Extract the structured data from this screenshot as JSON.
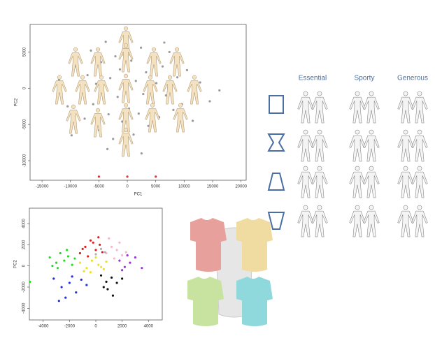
{
  "chart_data": [
    {
      "type": "scatter",
      "xlabel": "PC1",
      "ylabel": "PC2",
      "xlim": [
        -17100,
        20900
      ],
      "ylim": [
        -12700,
        8800
      ],
      "xticks": [
        -15000,
        -10000,
        -5000,
        0,
        5000,
        10000,
        15000,
        20000
      ],
      "yticks": [
        -10000,
        -5000,
        0,
        5000
      ],
      "series": [
        {
          "color": "#9a9a9a",
          "x": [
            -12000,
            -10500,
            -9000,
            -8200,
            -7500,
            -7000,
            -6400,
            -6000,
            -5500,
            -5000,
            -4600,
            -4200,
            -3800,
            -3300,
            -3000,
            -2500,
            -2100,
            -1700,
            -1300,
            -900,
            -500,
            -100,
            300,
            700,
            1100,
            1500,
            2000,
            2400,
            2800,
            3300,
            3700,
            4200,
            4600,
            5100,
            5600,
            6200,
            6800,
            7400,
            8100,
            8800,
            9600,
            10500,
            11500,
            12800,
            14500,
            16200,
            -9800,
            -3500,
            2500,
            6500
          ],
          "y": [
            1200,
            -2500,
            3000,
            -600,
            -4200,
            1800,
            5200,
            -2200,
            600,
            -5800,
            3600,
            -1500,
            6400,
            -3600,
            1400,
            -7000,
            4400,
            -1200,
            2600,
            -4600,
            200,
            7000,
            -2800,
            3800,
            -6400,
            1000,
            -3500,
            5600,
            -800,
            2200,
            -5200,
            4600,
            -2000,
            700,
            -4000,
            3000,
            -1000,
            5000,
            -3000,
            1500,
            -2200,
            2500,
            -4500,
            800,
            -1800,
            -300,
            -6500,
            -8400,
            -9000,
            6300
          ]
        },
        {
          "color": "#e03030",
          "x": [
            -5000,
            0,
            5000
          ],
          "y": [
            -12200,
            -12200,
            -12200
          ]
        }
      ]
    },
    {
      "type": "scatter",
      "ylabel": "PC2",
      "xlim": [
        -5050,
        5050
      ],
      "ylim": [
        -5100,
        5450
      ],
      "xticks": [
        -4000,
        -2000,
        0,
        2000,
        4000
      ],
      "yticks": [
        -4000,
        -2000,
        0,
        2000,
        4000
      ],
      "series": [
        {
          "color": "#22dd22",
          "x": [
            -3500,
            -3000,
            -2700,
            -2400,
            -2100,
            -1800,
            -2900,
            -2200,
            -3300,
            -1600,
            -5000
          ],
          "y": [
            800,
            300,
            1200,
            500,
            900,
            100,
            -200,
            1500,
            0,
            700,
            -1500
          ]
        },
        {
          "color": "#e02020",
          "x": [
            -1200,
            -800,
            -400,
            0,
            300,
            -600,
            200,
            -1000,
            500,
            -200
          ],
          "y": [
            1200,
            1800,
            2400,
            1500,
            2000,
            900,
            2700,
            1600,
            1300,
            2200
          ]
        },
        {
          "color": "#f5b8c8",
          "x": [
            800,
            1200,
            1600,
            2000,
            1000,
            1800,
            2300,
            1400
          ],
          "y": [
            1200,
            1800,
            1500,
            1000,
            2600,
            2200,
            1300,
            700
          ]
        },
        {
          "color": "#f0e020",
          "x": [
            -1200,
            -700,
            -300,
            200,
            600,
            -900,
            0,
            400,
            -400,
            800
          ],
          "y": [
            300,
            -200,
            500,
            100,
            -300,
            -500,
            800,
            -100,
            -600,
            400
          ]
        },
        {
          "color": "#a030e0",
          "x": [
            1800,
            2200,
            2600,
            3000,
            2400,
            2000,
            3500
          ],
          "y": [
            500,
            -100,
            300,
            800,
            1000,
            -400,
            -200
          ]
        },
        {
          "color": "#2030e0",
          "x": [
            -3200,
            -2600,
            -2000,
            -1500,
            -1100,
            -2300,
            -700,
            -1800,
            -2800
          ],
          "y": [
            -1200,
            -2000,
            -1600,
            -2500,
            -1300,
            -3000,
            -1800,
            -1000,
            -3300
          ]
        },
        {
          "color": "#111111",
          "x": [
            400,
            800,
            1200,
            1600,
            900,
            1300,
            2000,
            600
          ],
          "y": [
            -900,
            -1500,
            -1100,
            -1600,
            -2200,
            -2800,
            -1200,
            -2000
          ]
        },
        {
          "color": "#b0b0b0",
          "x": [
            0,
            400,
            700
          ],
          "y": [
            1100,
            1600,
            1300
          ]
        }
      ]
    }
  ],
  "panel": {
    "columns": [
      "Essential",
      "Sporty",
      "Generous"
    ]
  }
}
